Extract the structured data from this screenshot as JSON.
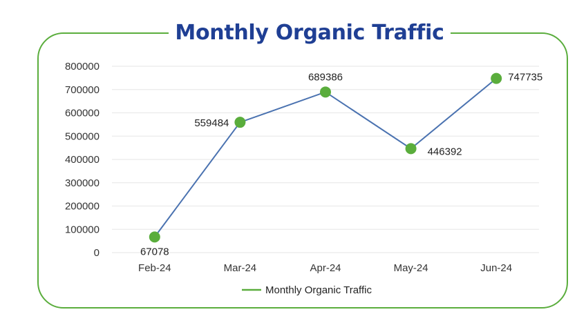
{
  "chart_data": {
    "type": "line",
    "title": "Monthly Organic Traffic",
    "categories": [
      "Feb-24",
      "Mar-24",
      "Apr-24",
      "May-24",
      "Jun-24"
    ],
    "series": [
      {
        "name": "Monthly Organic Traffic",
        "values": [
          67078,
          559484,
          689386,
          446392,
          747735
        ]
      }
    ],
    "xlabel": "",
    "ylabel": "",
    "ylim": [
      0,
      800000
    ],
    "yticks": [
      "0",
      "100000",
      "200000",
      "300000",
      "400000",
      "500000",
      "600000",
      "700000",
      "800000"
    ],
    "grid": true,
    "legend": "bottom",
    "colors": {
      "line": "#4a72b0",
      "marker": "#5aad3c",
      "frame": "#5aad3c",
      "title": "#1f3f94",
      "grid": "#e6e6e6"
    }
  }
}
